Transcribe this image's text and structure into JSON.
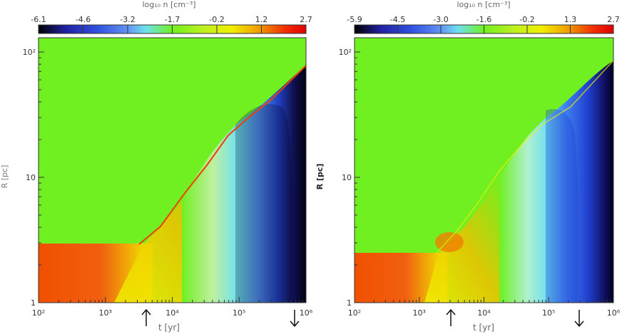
{
  "chart_data": [
    {
      "type": "heatmap",
      "title": "",
      "colorbar": {
        "label": "log₁₀ n [cm⁻³]",
        "ticks": [
          "-6.1",
          "-4.6",
          "-3.2",
          "-1.7",
          "-0.2",
          "1.2",
          "2.7"
        ],
        "range": [
          -6.1,
          2.7
        ],
        "colormap": [
          "#000000",
          "#2020a0",
          "#3050e0",
          "#6090f0",
          "#70e0f0",
          "#70f020",
          "#c0f020",
          "#f0f000",
          "#f0a000",
          "#f03000",
          "#e00000"
        ]
      },
      "xlabel": "t [yr]",
      "ylabel": "R [pc]",
      "xscale": "log",
      "yscale": "log",
      "xlim": [
        100,
        1000000
      ],
      "ylim": [
        1,
        130
      ],
      "x_ticks": [
        "10²",
        "10³",
        "10⁴",
        "10⁵",
        "10⁶"
      ],
      "y_ticks": [
        "1",
        "10",
        "10²"
      ],
      "background_value": 0.0,
      "front_radius": {
        "t": [
          100,
          1000,
          4500,
          10000,
          30000,
          100000,
          300000,
          1000000
        ],
        "R": [
          2.9,
          2.9,
          2.9,
          4.8,
          12,
          28,
          45,
          75
        ]
      },
      "arrows": [
        {
          "t": 4500,
          "direction": "up"
        },
        {
          "t": 800000,
          "direction": "down"
        }
      ]
    },
    {
      "type": "heatmap",
      "title": "",
      "colorbar": {
        "label": "log₁₀ n [cm⁻³]",
        "ticks": [
          "-5.9",
          "-4.5",
          "-3.0",
          "-1.6",
          "-0.2",
          "1.3",
          "2.7"
        ],
        "range": [
          -5.9,
          2.7
        ],
        "colormap": [
          "#000000",
          "#2020a0",
          "#3050e0",
          "#6090f0",
          "#70e0f0",
          "#70f020",
          "#c0f020",
          "#f0f000",
          "#f0a000",
          "#f03000",
          "#e00000"
        ]
      },
      "xlabel": "t [yr]",
      "ylabel": "R [pc]",
      "xscale": "log",
      "yscale": "log",
      "xlim": [
        100,
        1000000
      ],
      "ylim": [
        1,
        130
      ],
      "x_ticks": [
        "10²",
        "10³",
        "10⁴",
        "10⁵",
        "10⁶"
      ],
      "y_ticks": [
        "1",
        "10",
        "10²"
      ],
      "background_value": 0.0,
      "front_radius": {
        "t": [
          100,
          1000,
          2500,
          6000,
          20000,
          100000,
          300000,
          1000000
        ],
        "R": [
          2.5,
          2.5,
          2.5,
          4.5,
          12,
          30,
          45,
          70
        ]
      },
      "arrows": [
        {
          "t": 4200,
          "direction": "up"
        },
        {
          "t": 220000,
          "direction": "down"
        }
      ]
    }
  ]
}
